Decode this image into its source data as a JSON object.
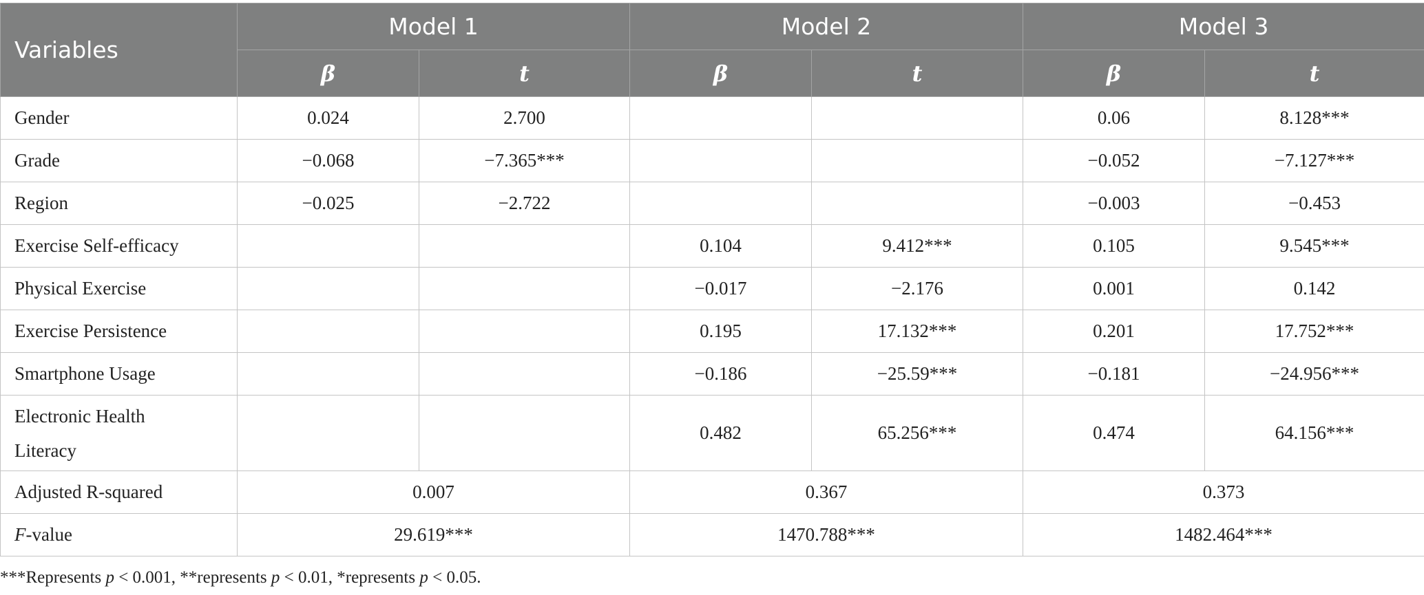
{
  "header": {
    "variables": "Variables",
    "models": [
      "Model 1",
      "Model 2",
      "Model 3"
    ],
    "beta": "β",
    "t": "t"
  },
  "rows": [
    {
      "label": "Gender",
      "cells": [
        "0.024",
        "2.700",
        "",
        "",
        "0.06",
        "8.128***"
      ]
    },
    {
      "label": "Grade",
      "cells": [
        "−0.068",
        "−7.365***",
        "",
        "",
        "−0.052",
        "−7.127***"
      ]
    },
    {
      "label": "Region",
      "cells": [
        "−0.025",
        "−2.722",
        "",
        "",
        "−0.003",
        "−0.453"
      ]
    },
    {
      "label": "Exercise Self-efficacy",
      "cells": [
        "",
        "",
        "0.104",
        "9.412***",
        "0.105",
        "9.545***"
      ]
    },
    {
      "label": "Physical Exercise",
      "cells": [
        "",
        "",
        "−0.017",
        "−2.176",
        "0.001",
        "0.142"
      ]
    },
    {
      "label": "Exercise Persistence",
      "cells": [
        "",
        "",
        "0.195",
        "17.132***",
        "0.201",
        "17.752***"
      ]
    },
    {
      "label": "Smartphone Usage",
      "cells": [
        "",
        "",
        "−0.186",
        "−25.59***",
        "−0.181",
        "−24.956***"
      ]
    },
    {
      "label_line1": "Electronic Health",
      "label_line2": "Literacy",
      "cells": [
        "",
        "",
        "0.482",
        "65.256***",
        "0.474",
        "64.156***"
      ]
    }
  ],
  "summary": {
    "adj_r2_label": "Adjusted R-squared",
    "adj_r2": [
      "0.007",
      "0.367",
      "0.373"
    ],
    "f_label_italic": "F",
    "f_label_rest": "-value",
    "f_values": [
      "29.619***",
      "1470.788***",
      "1482.464***"
    ]
  },
  "note": {
    "part1": "***Represents ",
    "p1": "p",
    "part2": " < 0.001, **represents ",
    "p2": "p",
    "part3": " < 0.01, *represents ",
    "p3": "p",
    "part4": " < 0.05."
  }
}
